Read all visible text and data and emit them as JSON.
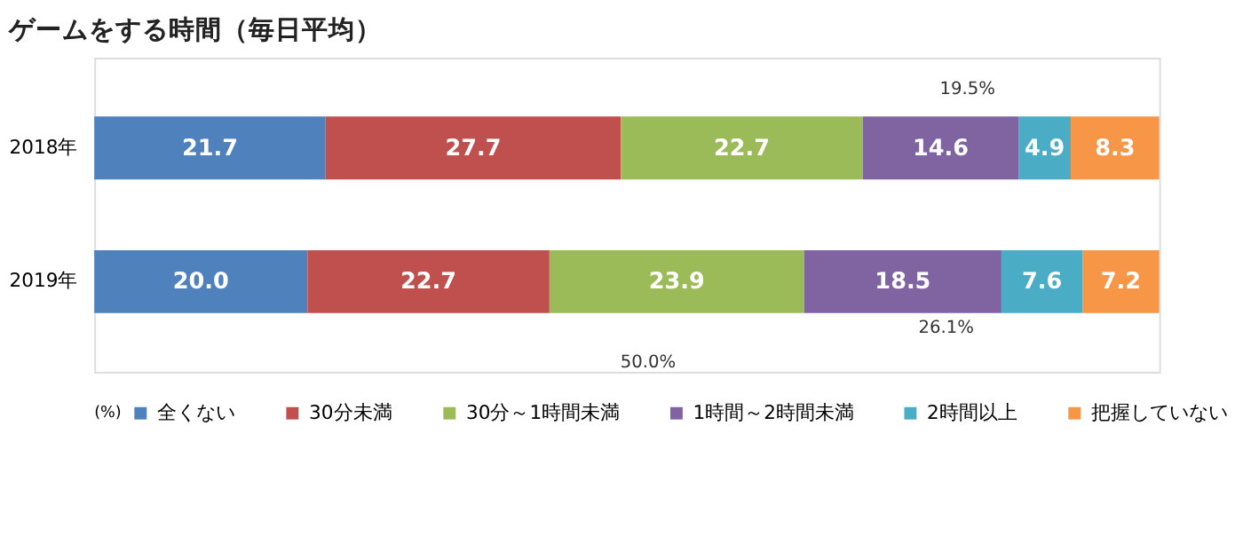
{
  "chart_data": {
    "type": "bar",
    "orientation": "horizontal",
    "stacked": true,
    "title": "ゲームをする時間（毎日平均）",
    "categories": [
      "2018年",
      "2019年"
    ],
    "series": [
      {
        "name": "全くない",
        "color": "#4f81bd",
        "values": [
          21.7,
          20.0
        ],
        "value_labels": [
          "21.7",
          "20.0"
        ]
      },
      {
        "name": "30分未満",
        "color": "#c0504d",
        "values": [
          27.7,
          22.7
        ],
        "value_labels": [
          "27.7",
          "22.7"
        ]
      },
      {
        "name": "30分～1時間未満",
        "color": "#9bbb59",
        "values": [
          22.7,
          23.9
        ],
        "value_labels": [
          "22.7",
          "23.9"
        ]
      },
      {
        "name": "1時間～2時間未満",
        "color": "#8064a2",
        "values": [
          14.6,
          18.5
        ],
        "value_labels": [
          "14.6",
          "18.5"
        ]
      },
      {
        "name": "2時間以上",
        "color": "#4bacc6",
        "values": [
          4.9,
          7.6
        ],
        "value_labels": [
          "4.9",
          "7.6"
        ]
      },
      {
        "name": "把握していない",
        "color": "#f79646",
        "values": [
          8.3,
          7.2
        ],
        "value_labels": [
          "8.3",
          "7.2"
        ]
      }
    ],
    "legend": "bottom",
    "legend_title": "(%)",
    "annotations": [
      "19.5%",
      "26.1%",
      "50.0%"
    ]
  }
}
